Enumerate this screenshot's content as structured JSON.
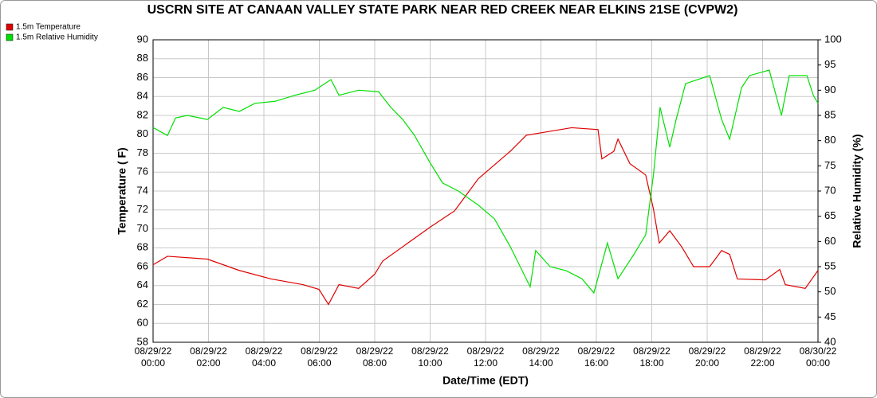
{
  "chart_data": {
    "type": "line",
    "title": "USCRN SITE AT CANAAN VALLEY STATE PARK NEAR RED CREEK NEAR ELKINS 21SE (CVPW2)",
    "xlabel": "Date/Time (EDT)",
    "ylabel": "Temperature ( F)",
    "y2label": "Relative Humidity (%)",
    "xlim": [
      0,
      24
    ],
    "xticks": [
      {
        "value": 0,
        "label": "08/29/22 00:00"
      },
      {
        "value": 2,
        "label": "08/29/22 02:00"
      },
      {
        "value": 4,
        "label": "08/29/22 04:00"
      },
      {
        "value": 6,
        "label": "08/29/22 06:00"
      },
      {
        "value": 8,
        "label": "08/29/22 08:00"
      },
      {
        "value": 10,
        "label": "08/29/22 10:00"
      },
      {
        "value": 12,
        "label": "08/29/22 12:00"
      },
      {
        "value": 14,
        "label": "08/29/22 14:00"
      },
      {
        "value": 16,
        "label": "08/29/22 16:00"
      },
      {
        "value": 18,
        "label": "08/29/22 18:00"
      },
      {
        "value": 20,
        "label": "08/29/22 20:00"
      },
      {
        "value": 22,
        "label": "08/29/22 22:00"
      },
      {
        "value": 24,
        "label": "08/30/22 00:00"
      }
    ],
    "ylim": [
      58,
      90
    ],
    "yticks": [
      58,
      60,
      62,
      64,
      66,
      68,
      70,
      72,
      74,
      76,
      78,
      80,
      82,
      84,
      86,
      88,
      90
    ],
    "y2lim": [
      40,
      100
    ],
    "y2ticks": [
      40,
      45,
      50,
      55,
      60,
      65,
      70,
      75,
      80,
      85,
      90,
      95,
      100
    ],
    "grid": true,
    "legend": "top-left",
    "series": [
      {
        "name": "1.5m Temperature",
        "color": "#e00000",
        "x": [
          0,
          0.52,
          1.96,
          3.11,
          4.26,
          5.41,
          5.99,
          6.33,
          6.71,
          7.42,
          8.0,
          8.29,
          10.01,
          10.88,
          11.74,
          12.89,
          13.47,
          15.11,
          16.06,
          16.2,
          16.63,
          16.78,
          17.21,
          17.78,
          18.06,
          18.27,
          18.65,
          19.08,
          19.51,
          20.09,
          20.52,
          20.81,
          21.09,
          22.1,
          22.62,
          22.82,
          23.54,
          24
        ],
        "values": [
          66.2,
          67.1,
          66.8,
          65.6,
          64.7,
          64.1,
          63.6,
          62,
          64.1,
          63.7,
          65.2,
          66.6,
          70.2,
          71.9,
          75.3,
          78.2,
          79.9,
          80.7,
          80.5,
          77.4,
          78.2,
          79.5,
          76.9,
          75.7,
          72.1,
          68.5,
          69.8,
          68.1,
          66,
          66,
          67.7,
          67.3,
          64.7,
          64.6,
          65.7,
          64.1,
          63.7,
          65.6
        ]
      },
      {
        "name": "1.5m Relative Humidity",
        "color": "#00e000",
        "axis": "y2",
        "x": [
          0,
          0.52,
          0.81,
          1.24,
          1.96,
          2.53,
          3.11,
          3.68,
          4.4,
          5.12,
          5.84,
          6.42,
          6.71,
          7.42,
          8.14,
          8.58,
          9.01,
          9.44,
          10.01,
          10.45,
          11.02,
          11.74,
          12.32,
          12.89,
          13.61,
          13.81,
          14.33,
          14.91,
          15.48,
          15.91,
          16.4,
          16.78,
          17.35,
          17.78,
          18.06,
          18.3,
          18.65,
          18.88,
          19.22,
          19.65,
          20.09,
          20.52,
          20.81,
          21.24,
          21.53,
          22.24,
          22.68,
          22.96,
          23.6,
          23.83,
          24
        ],
        "values": [
          82.6,
          81,
          84.5,
          85,
          84.2,
          86.6,
          85.8,
          87.4,
          87.8,
          89,
          90,
          92.1,
          89,
          90,
          89.7,
          86.6,
          84.2,
          81,
          75.5,
          71.6,
          70,
          67.2,
          64.5,
          59,
          51,
          58.2,
          55,
          54.2,
          52.6,
          49.8,
          59.7,
          52.6,
          57.4,
          61.3,
          73.2,
          86.6,
          78.7,
          84.2,
          91.3,
          92.1,
          92.9,
          84.2,
          80.3,
          90.5,
          92.9,
          94,
          85,
          92.9,
          92.9,
          89,
          87.4
        ]
      }
    ]
  }
}
